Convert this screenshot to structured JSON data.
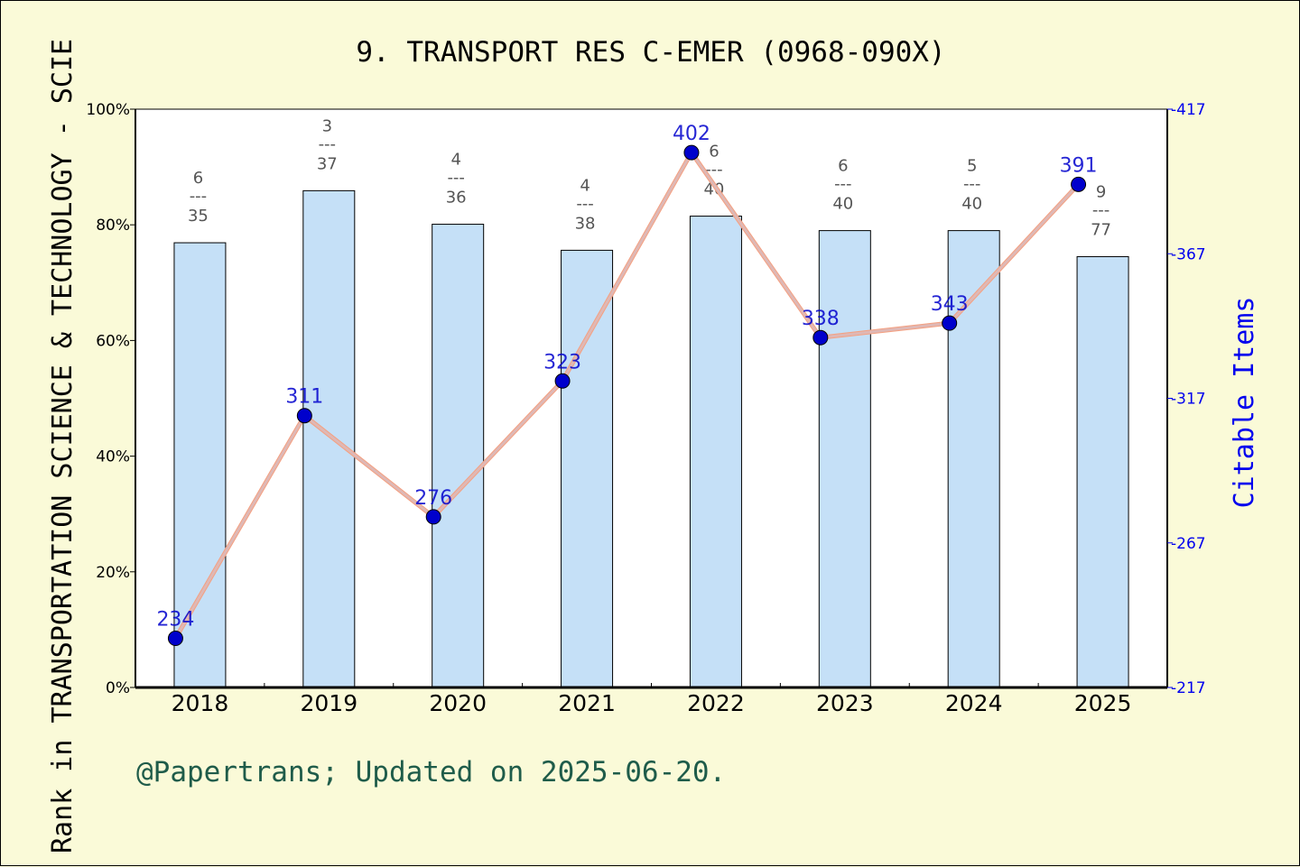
{
  "page": {
    "title": "9. TRANSPORT RES C-EMER (0968-090X)",
    "footer": "@Papertrans; Updated on 2025-06-20."
  },
  "chart_data": {
    "type": "bar+line",
    "title": "9. TRANSPORT RES C-EMER (0968-090X)",
    "ylabel_left": "Rank in TRANSPORTATION SCIENCE & TECHNOLOGY - SCIE",
    "ylabel_right": "Citable Items",
    "categories": [
      "2018",
      "2019",
      "2020",
      "2021",
      "2022",
      "2023",
      "2024",
      "2025"
    ],
    "left_axis": {
      "min": 0,
      "max": 100,
      "ticks": [
        "0%",
        "20%",
        "40%",
        "60%",
        "80%",
        "100%"
      ]
    },
    "right_axis": {
      "min": 217,
      "max": 417,
      "ticks": [
        217,
        267,
        317,
        367,
        417
      ]
    },
    "bars": {
      "percent": [
        76.9,
        85.9,
        80.1,
        75.6,
        81.5,
        79.0,
        79.0,
        74.5
      ],
      "rank": [
        6,
        3,
        4,
        4,
        6,
        6,
        5,
        9
      ],
      "total": [
        35,
        37,
        36,
        38,
        40,
        40,
        40,
        77
      ],
      "separator": "---"
    },
    "line": {
      "name": "Citable Items",
      "values": [
        234,
        311,
        276,
        323,
        402,
        338,
        343,
        391
      ]
    },
    "colors": {
      "background": "#fafad8",
      "bar_fill": "#c5e0f7",
      "line": "#f5a080",
      "line_overlay": "#cccce0",
      "marker": "#0000cc",
      "right_axis": "#0000ee",
      "footer": "#1f5c4a",
      "rank_text": "#555555"
    }
  }
}
